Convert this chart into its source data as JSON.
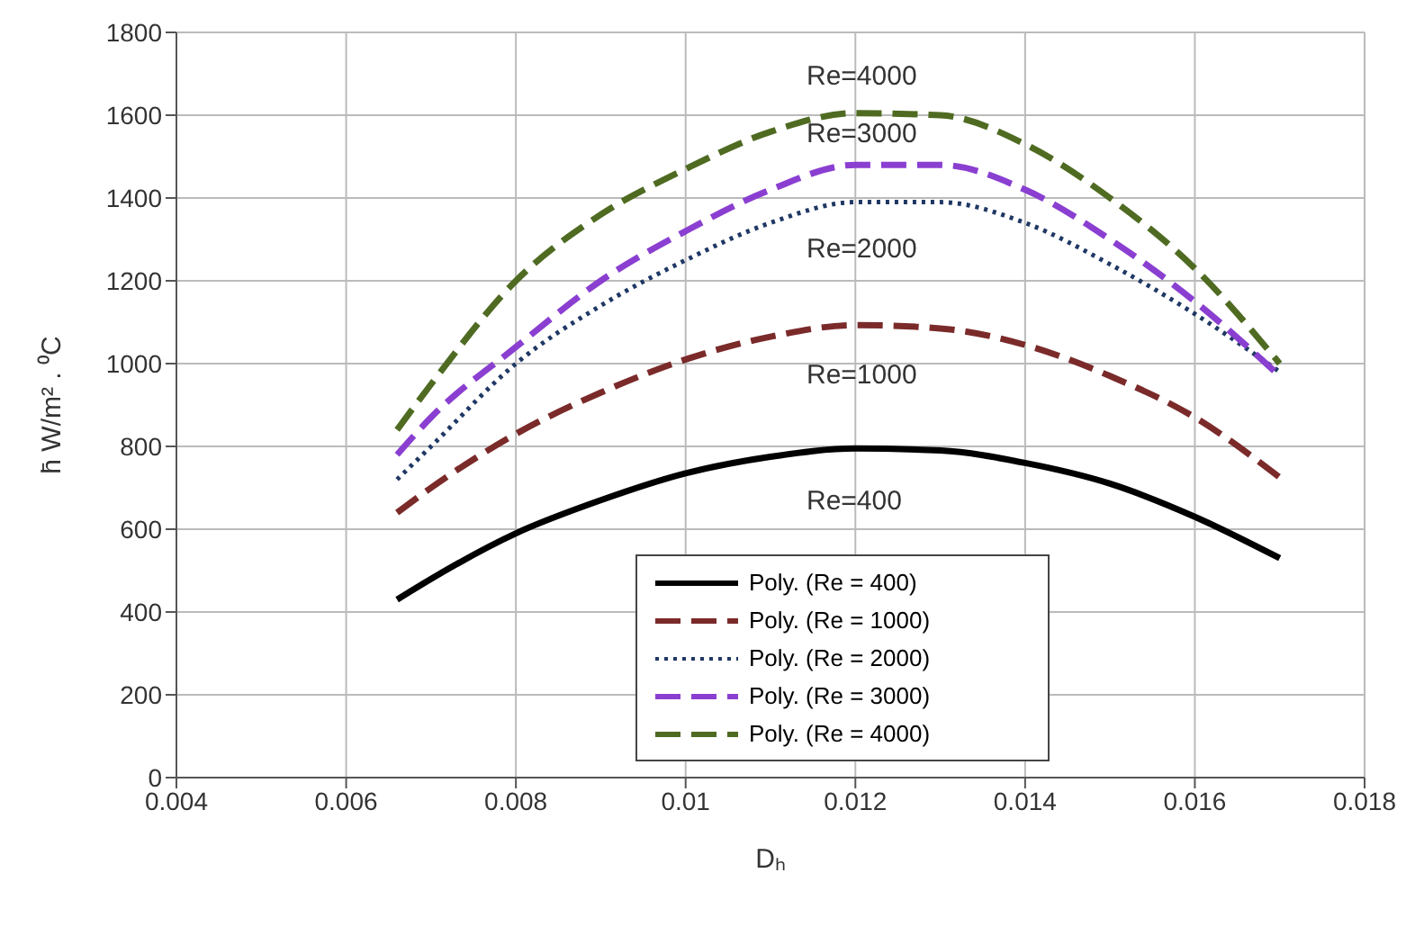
{
  "chart_data": {
    "type": "line",
    "xlabel": "Dₕ",
    "ylabel": "h̄   W/m² . ⁰C",
    "x": [
      0.0066,
      0.007,
      0.008,
      0.009,
      0.01,
      0.011,
      0.012,
      0.013,
      0.014,
      0.015,
      0.016,
      0.017
    ],
    "series": [
      {
        "name": "Poly. (Re = 400)",
        "color": "#000000",
        "line_style": "solid",
        "values": [
          430,
          480,
          590,
          670,
          735,
          775,
          795,
          790,
          760,
          710,
          630,
          530
        ]
      },
      {
        "name": "Poly. (Re = 1000)",
        "color": "#7b2a2a",
        "line_style": "dashed",
        "values": [
          640,
          700,
          830,
          930,
          1010,
          1065,
          1093,
          1085,
          1045,
          970,
          870,
          725
        ]
      },
      {
        "name": "Poly. (Re = 2000)",
        "color": "#1f3864",
        "line_style": "dotted",
        "values": [
          720,
          800,
          1000,
          1140,
          1250,
          1340,
          1390,
          1390,
          1340,
          1240,
          1120,
          980
        ]
      },
      {
        "name": "Poly. (Re = 3000)",
        "color": "#8a3fd1",
        "line_style": "dashed",
        "values": [
          780,
          870,
          1040,
          1200,
          1320,
          1420,
          1480,
          1480,
          1420,
          1300,
          1150,
          970
        ]
      },
      {
        "name": "Poly. (Re = 4000)",
        "color": "#4f6b22",
        "line_style": "dashed",
        "values": [
          840,
          950,
          1200,
          1360,
          1470,
          1560,
          1605,
          1600,
          1530,
          1400,
          1230,
          1000
        ]
      }
    ],
    "xlim": [
      0.004,
      0.018
    ],
    "xticks": [
      0.004,
      0.006,
      0.008,
      0.01,
      0.012,
      0.014,
      0.016,
      0.018
    ],
    "ylim": [
      0,
      1800
    ],
    "yticks": [
      0,
      200,
      400,
      600,
      800,
      1000,
      1200,
      1400,
      1600,
      1800
    ],
    "grid": true,
    "legend": "bottom",
    "marker": "none",
    "annotations": [
      "Re=4000",
      "Re=3000",
      "Re=2000",
      "Re=1000",
      "Re=400"
    ]
  }
}
